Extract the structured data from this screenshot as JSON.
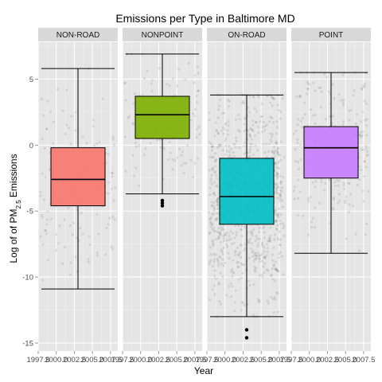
{
  "chart_data": {
    "type": "boxplot",
    "title": "Emissions per Type in Baltimore MD",
    "xlabel": "Year",
    "ylabel_parts": {
      "pre": "Log of of PM",
      "sub": "2.5",
      "post": " Emissions"
    },
    "xlim": [
      1997.5,
      2008.5
    ],
    "ylim": [
      -15.6,
      7.8
    ],
    "x_ticks": [
      1997.5,
      2000.0,
      2002.5,
      2005.0,
      2007.5
    ],
    "x_tick_labels": [
      "1997.5",
      "2000.0",
      "2002.5",
      "2005.0",
      "2007.5"
    ],
    "y_ticks": [
      5,
      0,
      -5,
      -10,
      -15
    ],
    "y_tick_labels": [
      "5",
      "0",
      "-5",
      "-10",
      "-15"
    ],
    "grid": true,
    "legend": "none",
    "panels": [
      {
        "name": "NON-ROAD",
        "color": "#F8766D",
        "box": {
          "x": 2003,
          "min": -10.9,
          "q1": -4.6,
          "median": -2.6,
          "q3": -0.2,
          "max": 5.8
        },
        "outliers": []
      },
      {
        "name": "NONPOINT",
        "color": "#7CAE00",
        "box": {
          "x": 2003,
          "min": -3.7,
          "q1": 0.5,
          "median": 2.3,
          "q3": 3.7,
          "max": 6.9
        },
        "outliers": [
          -4.2,
          -4.4,
          -4.6
        ]
      },
      {
        "name": "ON-ROAD",
        "color": "#00BFC4",
        "box": {
          "x": 2003,
          "min": -13.0,
          "q1": -6.0,
          "median": -3.9,
          "q3": -1.0,
          "max": 3.8
        },
        "outliers": [
          -14.0,
          -14.6
        ]
      },
      {
        "name": "POINT",
        "color": "#C77CFF",
        "box": {
          "x": 2003,
          "min": -8.2,
          "q1": -2.5,
          "median": -0.2,
          "q3": 1.4,
          "max": 5.5
        },
        "outliers": []
      }
    ]
  }
}
